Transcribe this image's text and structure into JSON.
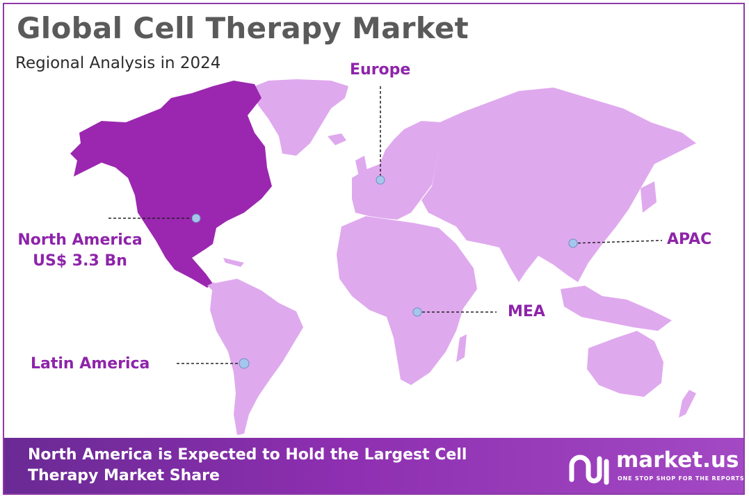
{
  "title": "Global Cell Therapy Market",
  "subtitle": "Regional Analysis in 2024",
  "regions": {
    "north_america": {
      "name": "North America",
      "value": "US$ 3.3 Bn"
    },
    "europe": {
      "name": "Europe"
    },
    "apac": {
      "name": "APAC"
    },
    "mea": {
      "name": "MEA"
    },
    "latin_america": {
      "name": "Latin America"
    }
  },
  "footer": {
    "text": "North America is Expected to Hold the Largest Cell Therapy Market Share",
    "brand_name": "market.us",
    "brand_tagline": "ONE STOP SHOP FOR THE REPORTS"
  },
  "colors": {
    "highlight_region": "#9b27b0",
    "other_regions": "#dfa9ee",
    "label": "#8e24aa",
    "footer": "#8d2fb0",
    "border": "#8e3aa6",
    "marker": "#a6c6ec"
  },
  "icons": [
    "market-us-logo-icon"
  ]
}
